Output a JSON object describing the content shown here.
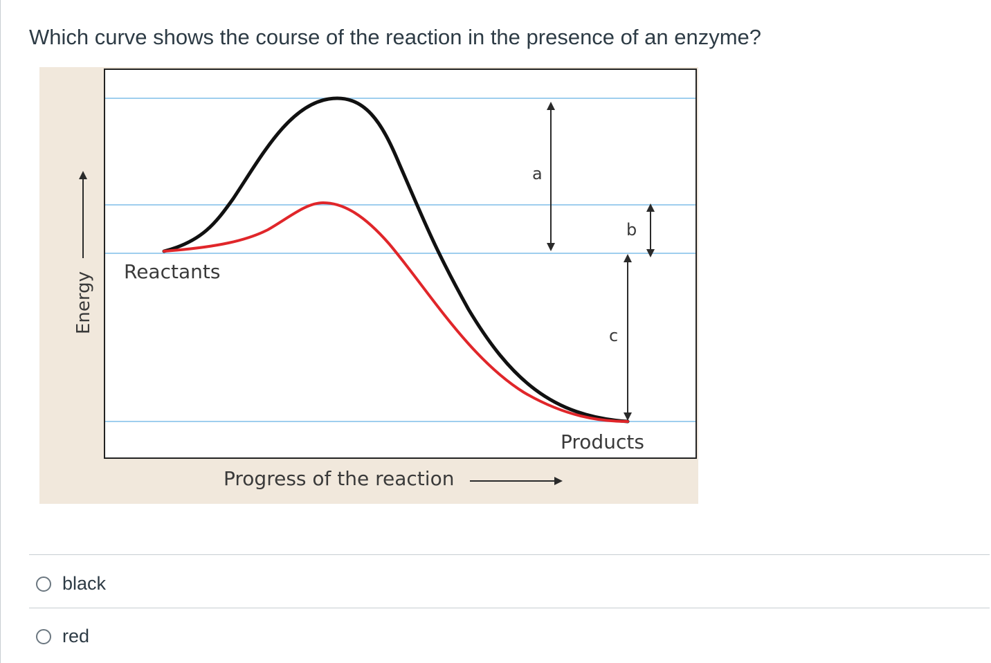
{
  "question": {
    "text": "Which curve shows the course of the reaction in the presence of an enzyme?"
  },
  "figure": {
    "y_axis_label": "Energy",
    "x_axis_label": "Progress of the reaction",
    "reactants_label": "Reactants",
    "products_label": "Products",
    "arrow_a_label": "a",
    "arrow_b_label": "b",
    "arrow_c_label": "c",
    "colors": {
      "background": "#f1e8dc",
      "plot_border": "#222222",
      "guide_lines": "#7fbde8",
      "uncatalyzed_curve": "#111111",
      "catalyzed_curve": "#e0262a"
    }
  },
  "answers": [
    {
      "label": "black"
    },
    {
      "label": "red"
    }
  ]
}
